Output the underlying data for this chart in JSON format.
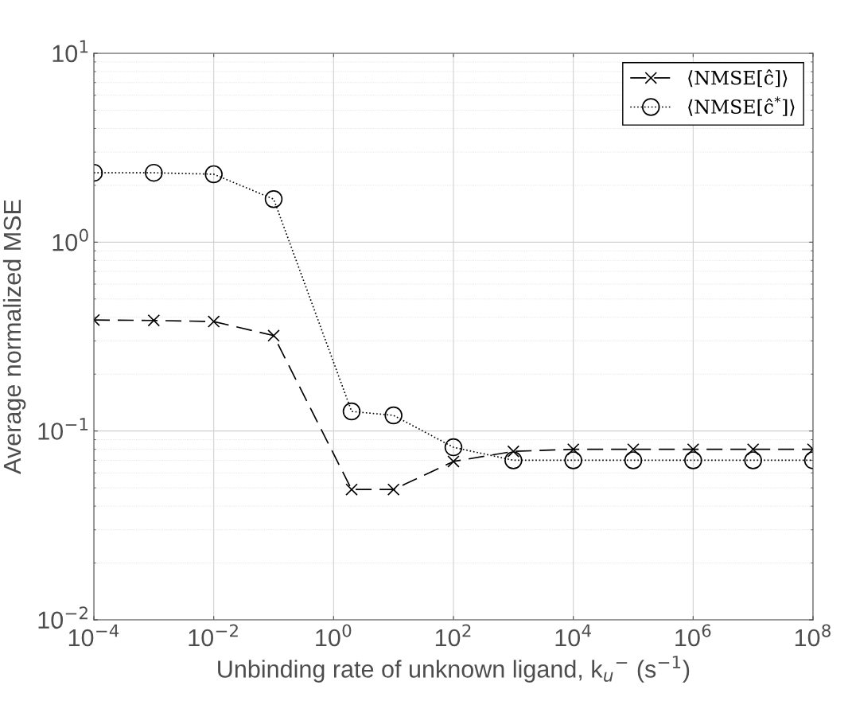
{
  "chart_data": {
    "type": "line",
    "xlabel": "Unbinding rate of unknown ligand, k$_{u}$$^{−}$ (s$^{−1}$)",
    "ylabel": "Average normalized MSE",
    "x": [
      0.0001,
      0.001,
      0.01,
      0.1,
      2,
      10,
      100,
      1000,
      10000,
      100000,
      1000000,
      10000000,
      100000000
    ],
    "series": [
      {
        "name": "⟨NMSE[ĉ]⟩",
        "color": "#000000",
        "marker": "cross",
        "line_style": "dashed",
        "values": [
          0.387,
          0.385,
          0.38,
          0.32,
          0.049,
          0.049,
          0.069,
          0.078,
          0.08,
          0.08,
          0.08,
          0.08,
          0.08
        ]
      },
      {
        "name": "⟨NMSE[ĉ$^{*}$]⟩",
        "color": "#000000",
        "marker": "circle",
        "line_style": "dotted",
        "values": [
          2.33,
          2.33,
          2.29,
          1.69,
          0.127,
          0.121,
          0.082,
          0.07,
          0.07,
          0.07,
          0.07,
          0.07,
          0.07
        ]
      }
    ],
    "log": "xy",
    "xlim": [
      0.0001,
      100000000
    ],
    "ylim": [
      0.01,
      10
    ],
    "xticks": [
      {
        "value": 0.0001,
        "label": "10$^{−4}$"
      },
      {
        "value": 0.01,
        "label": "10$^{−2}$"
      },
      {
        "value": 1,
        "label": "10$^{0}$"
      },
      {
        "value": 100,
        "label": "10$^{2}$"
      },
      {
        "value": 10000,
        "label": "10$^{4}$"
      },
      {
        "value": 1000000,
        "label": "10$^{6}$"
      },
      {
        "value": 100000000,
        "label": "10$^{8}$"
      }
    ],
    "yticks": [
      {
        "value": 0.01,
        "label": "10$^{−2}$"
      },
      {
        "value": 0.1,
        "label": "10$^{−1}$"
      },
      {
        "value": 1,
        "label": "10$^{0}$"
      },
      {
        "value": 10,
        "label": "10$^{1}$"
      }
    ],
    "grid": true,
    "legend": "top right"
  }
}
